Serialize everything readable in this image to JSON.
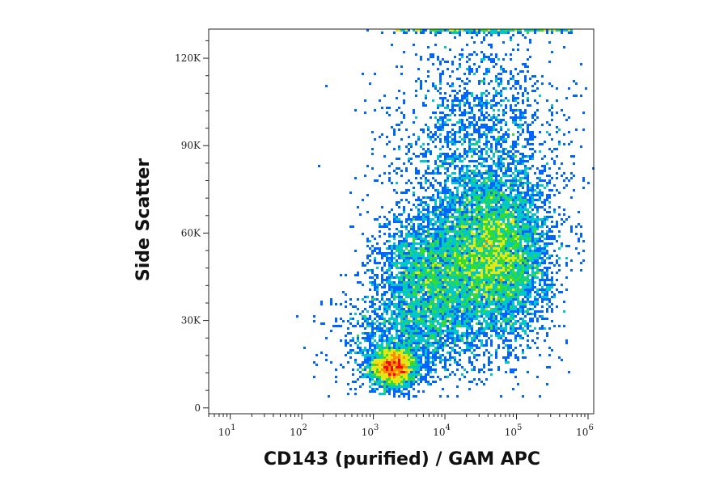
{
  "chart_data": {
    "type": "scatter",
    "subtype": "flow cytometry density dot plot",
    "xlabel": "CD143 (purified) / GAM APC",
    "ylabel": "Side Scatter",
    "x_scale": "log",
    "xlim": [
      5,
      1200000
    ],
    "ylim": [
      -2000,
      130000
    ],
    "x_ticks": [
      {
        "value": 10,
        "base": "10",
        "exp": "1"
      },
      {
        "value": 100,
        "base": "10",
        "exp": "2"
      },
      {
        "value": 1000,
        "base": "10",
        "exp": "3"
      },
      {
        "value": 10000,
        "base": "10",
        "exp": "4"
      },
      {
        "value": 100000,
        "base": "10",
        "exp": "5"
      },
      {
        "value": 1000000,
        "base": "10",
        "exp": "6"
      }
    ],
    "y_ticks": [
      {
        "value": 0,
        "label": "0"
      },
      {
        "value": 30000,
        "label": "30K"
      },
      {
        "value": 60000,
        "label": "60K"
      },
      {
        "value": 90000,
        "label": "90K"
      },
      {
        "value": 120000,
        "label": "120K"
      }
    ],
    "colormap": [
      "#0000c8",
      "#0064ff",
      "#00c8c8",
      "#32dc32",
      "#e6e614",
      "#ff8c00",
      "#ff0000"
    ],
    "populations": [
      {
        "x_center": 1900,
        "y_center": 14000,
        "x_spread_log10": 0.16,
        "y_spread": 3500,
        "weight": 2200
      },
      {
        "x_center": 50000,
        "y_center": 52000,
        "x_spread_log10": 0.38,
        "y_spread": 14000,
        "weight": 6500
      },
      {
        "x_center": 6000,
        "y_center": 45000,
        "x_spread_log10": 0.35,
        "y_spread": 12000,
        "weight": 3000
      },
      {
        "x_center": 30000,
        "y_center": 90000,
        "x_spread_log10": 0.6,
        "y_spread": 20000,
        "weight": 2000
      },
      {
        "x_center": 3000,
        "y_center": 25000,
        "x_spread_log10": 0.5,
        "y_spread": 9000,
        "weight": 1200
      }
    ],
    "grid": false,
    "legend": "none"
  }
}
